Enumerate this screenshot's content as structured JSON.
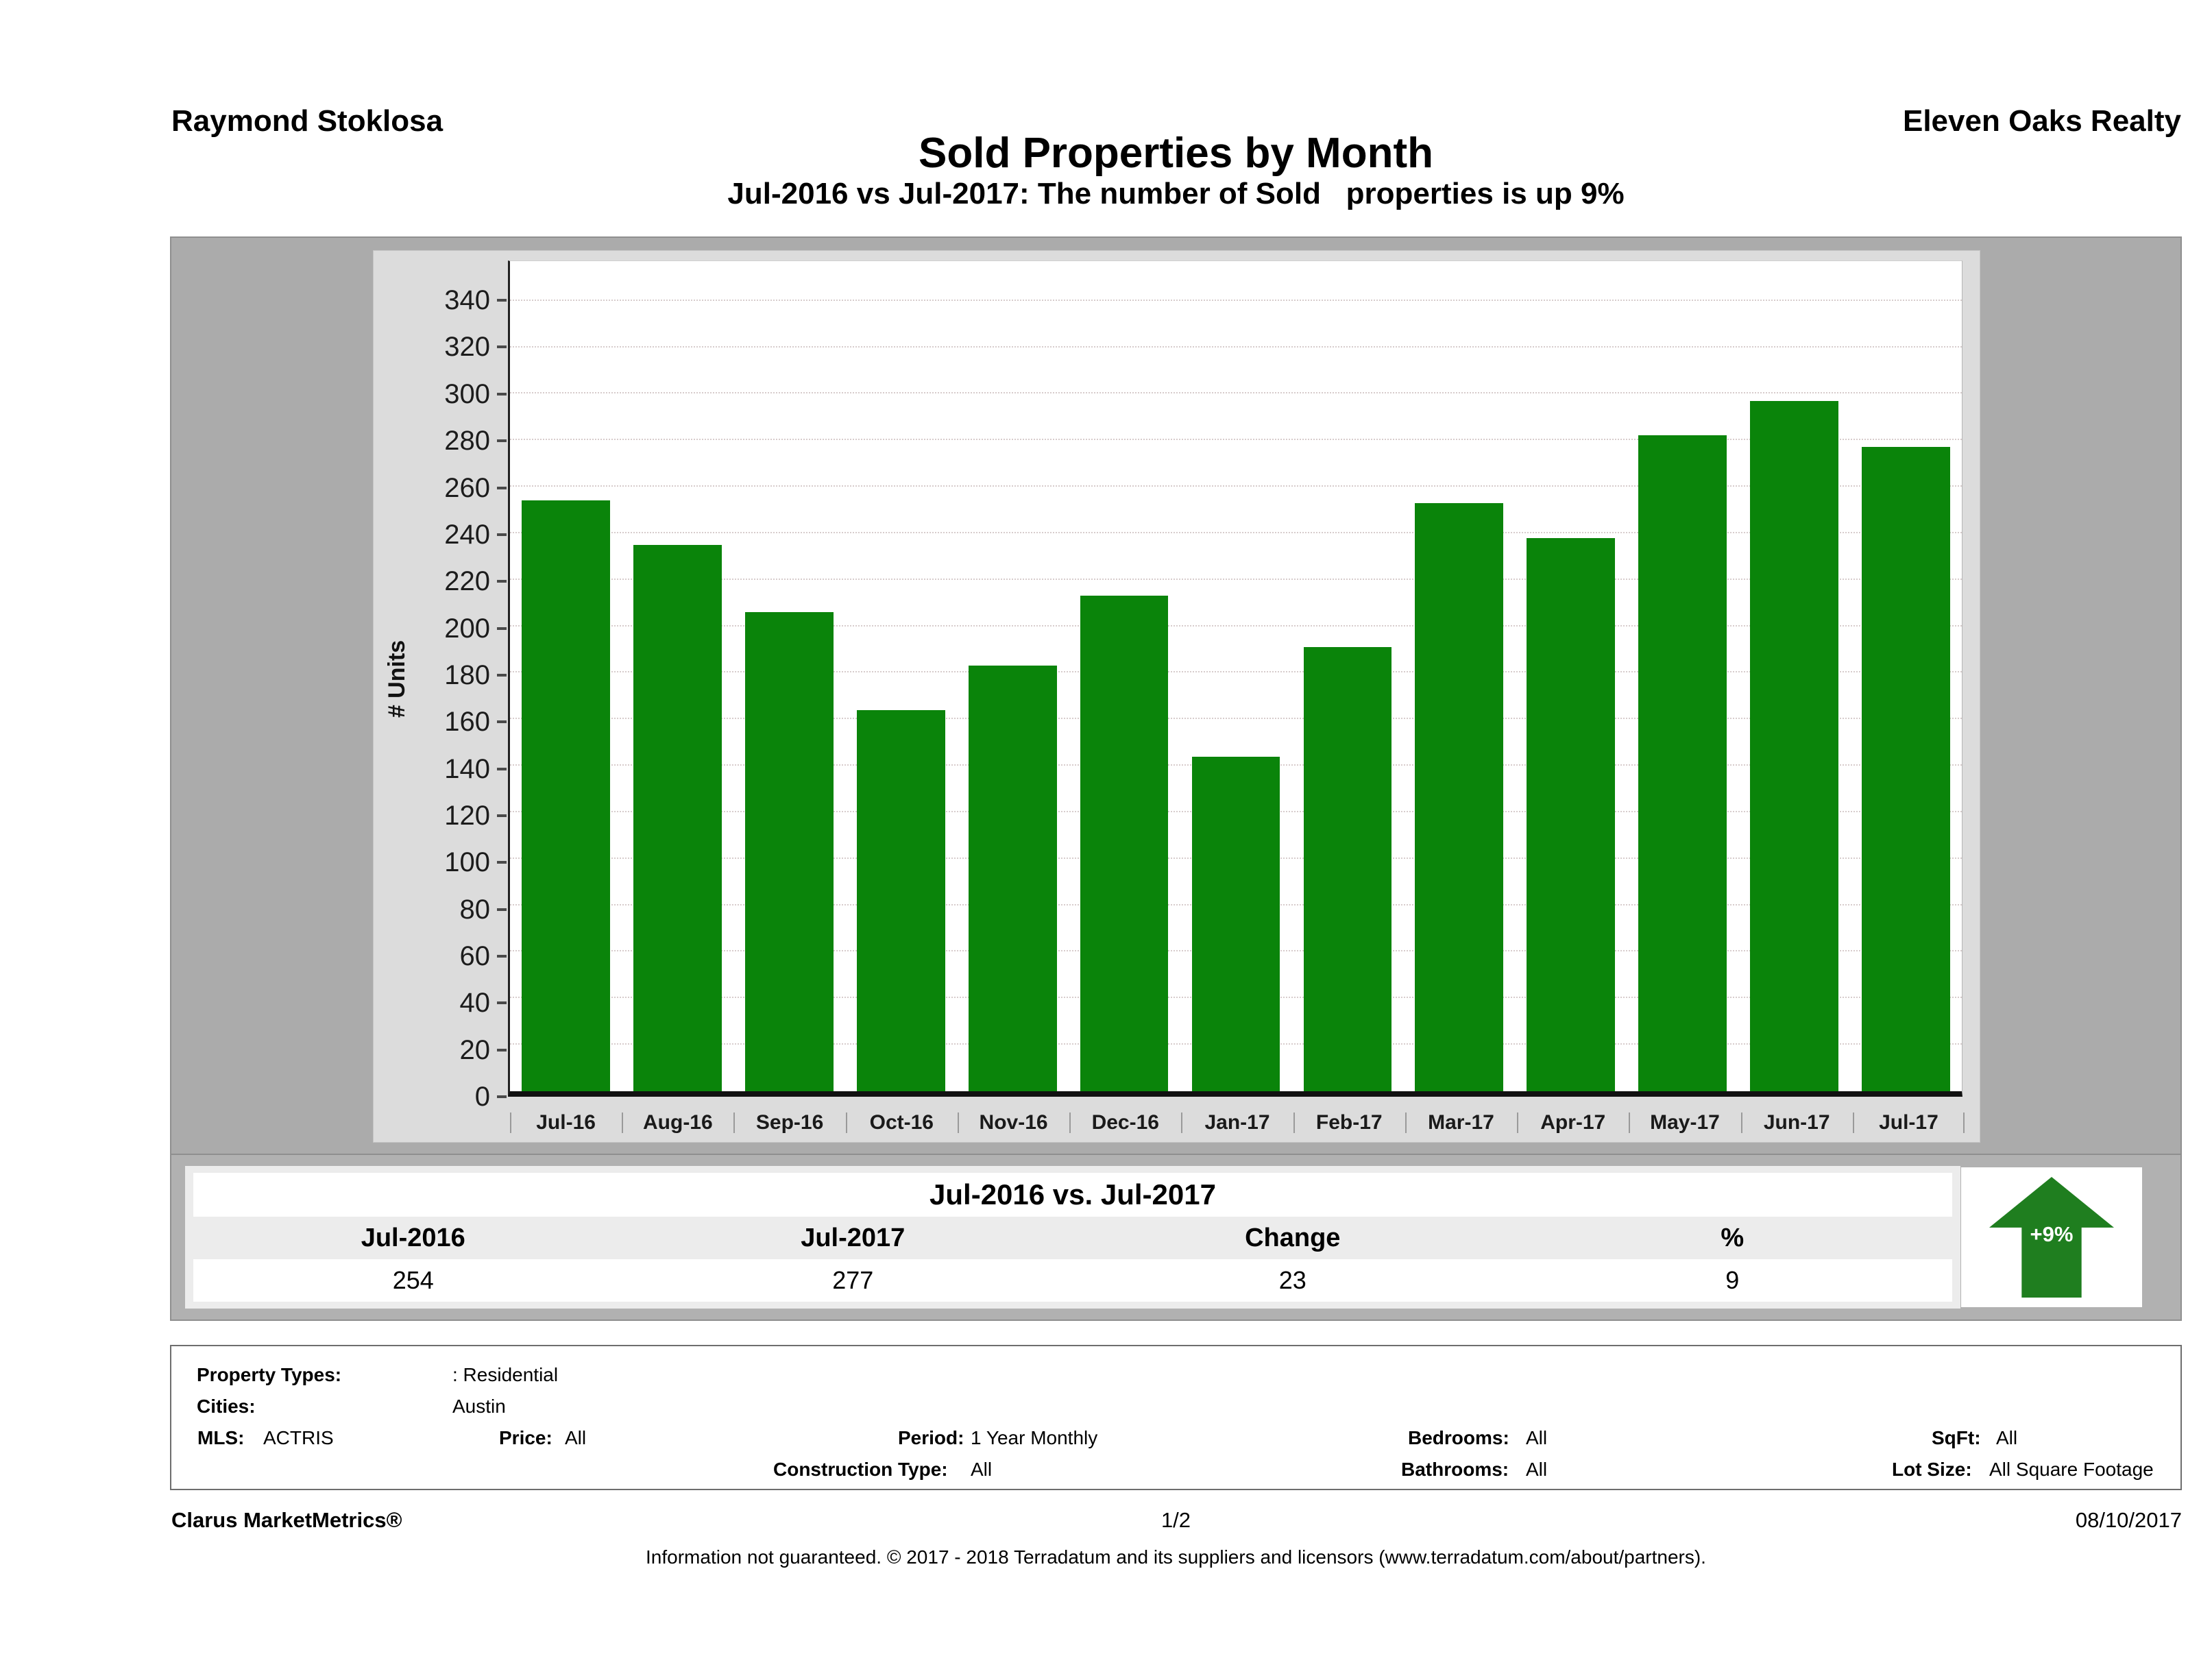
{
  "header": {
    "agent": "Raymond Stoklosa",
    "company": "Eleven Oaks Realty",
    "title": "Sold Properties by Month",
    "subtitle": "Jul-2016 vs Jul-2017: The number of Sold   properties is up 9%"
  },
  "chart_data": {
    "type": "bar",
    "title": "Sold Properties by Month",
    "xlabel": "",
    "ylabel": "# Units",
    "categories": [
      "Jul-16",
      "Aug-16",
      "Sep-16",
      "Oct-16",
      "Nov-16",
      "Dec-16",
      "Jan-17",
      "Feb-17",
      "Mar-17",
      "Apr-17",
      "May-17",
      "Jun-17",
      "Jul-17"
    ],
    "values": [
      254,
      235,
      206,
      164,
      183,
      213,
      144,
      191,
      253,
      238,
      282,
      297,
      277
    ],
    "yticks": [
      0,
      20,
      40,
      60,
      80,
      100,
      120,
      140,
      160,
      180,
      200,
      220,
      240,
      260,
      280,
      300,
      320,
      340
    ],
    "ylim": [
      0,
      357
    ],
    "grid": "horizontal-dotted",
    "legend": "none",
    "bar_color": "#0a840a"
  },
  "summary_table": {
    "title": "Jul-2016 vs. Jul-2017",
    "columns": [
      "Jul-2016",
      "Jul-2017",
      "Change",
      "%"
    ],
    "values": [
      "254",
      "277",
      "23",
      "9"
    ],
    "badge": {
      "label": "+9%",
      "direction": "up",
      "color": "#1f7e1f"
    }
  },
  "filters": {
    "property_types_label": "Property Types:",
    "property_types_value": ": Residential",
    "cities_label": "Cities:",
    "cities_value": "Austin",
    "mls_label": "MLS:",
    "mls_value": "ACTRIS",
    "price_label": "Price:",
    "price_value": "All",
    "period_label": "Period:",
    "period_value": "1 Year Monthly",
    "bedrooms_label": "Bedrooms:",
    "bedrooms_value": "All",
    "sqft_label": "SqFt:",
    "sqft_value": "All",
    "construction_label": "Construction Type:",
    "construction_value": "All",
    "bathrooms_label": "Bathrooms:",
    "bathrooms_value": "All",
    "lot_size_label": "Lot Size:",
    "lot_size_value": "All Square Footage"
  },
  "footer": {
    "brand": "Clarus MarketMetrics®",
    "page": "1/2",
    "date": "08/10/2017",
    "disclaimer": "Information not guaranteed. © 2017 - 2018 Terradatum and its suppliers and licensors (www.terradatum.com/about/partners)."
  }
}
